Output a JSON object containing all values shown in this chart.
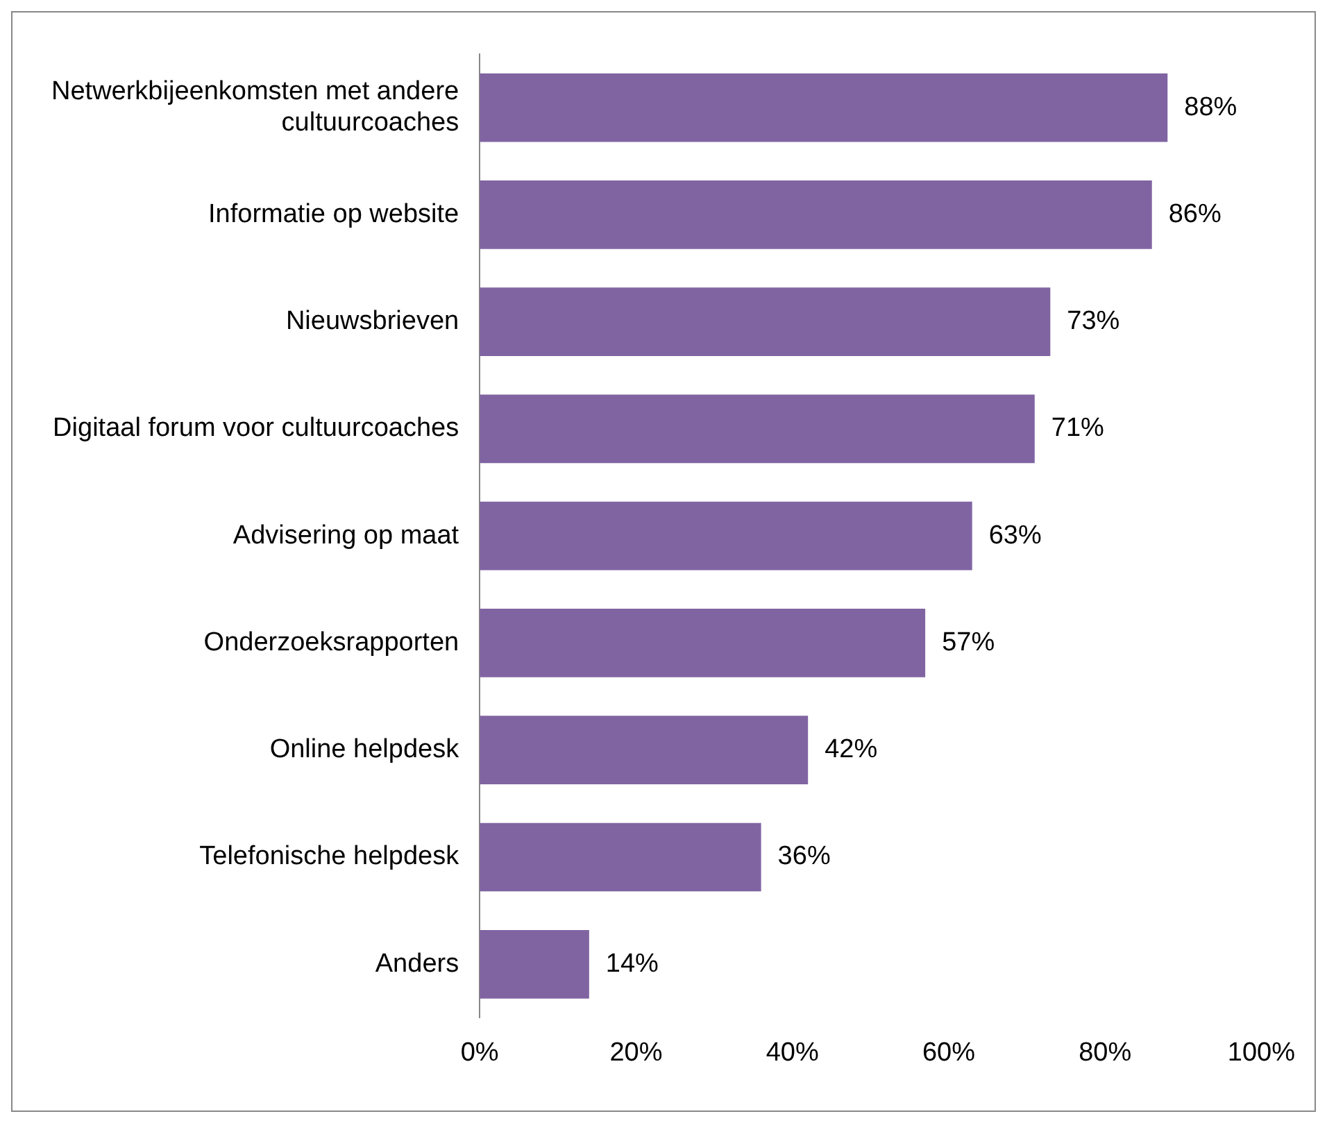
{
  "chart_data": {
    "type": "bar",
    "orientation": "horizontal",
    "categories": [
      "Netwerkbijeenkomsten met andere cultuurcoaches",
      "Informatie op website",
      "Nieuwsbrieven",
      "Digitaal forum voor cultuurcoaches",
      "Advisering op maat",
      "Onderzoeksrapporten",
      "Online helpdesk",
      "Telefonische helpdesk",
      "Anders"
    ],
    "values": [
      88,
      86,
      73,
      71,
      63,
      57,
      42,
      36,
      14
    ],
    "value_labels": [
      "88%",
      "86%",
      "73%",
      "71%",
      "63%",
      "57%",
      "42%",
      "36%",
      "14%"
    ],
    "color": "#8064a2",
    "xlim": [
      0,
      100
    ],
    "xticks": [
      {
        "value": 0,
        "label": "0%"
      },
      {
        "value": 20,
        "label": "20%"
      },
      {
        "value": 40,
        "label": "40%"
      },
      {
        "value": 60,
        "label": "60%"
      },
      {
        "value": 80,
        "label": "80%"
      },
      {
        "value": 100,
        "label": "100%"
      }
    ],
    "grid": false,
    "legend": false
  }
}
